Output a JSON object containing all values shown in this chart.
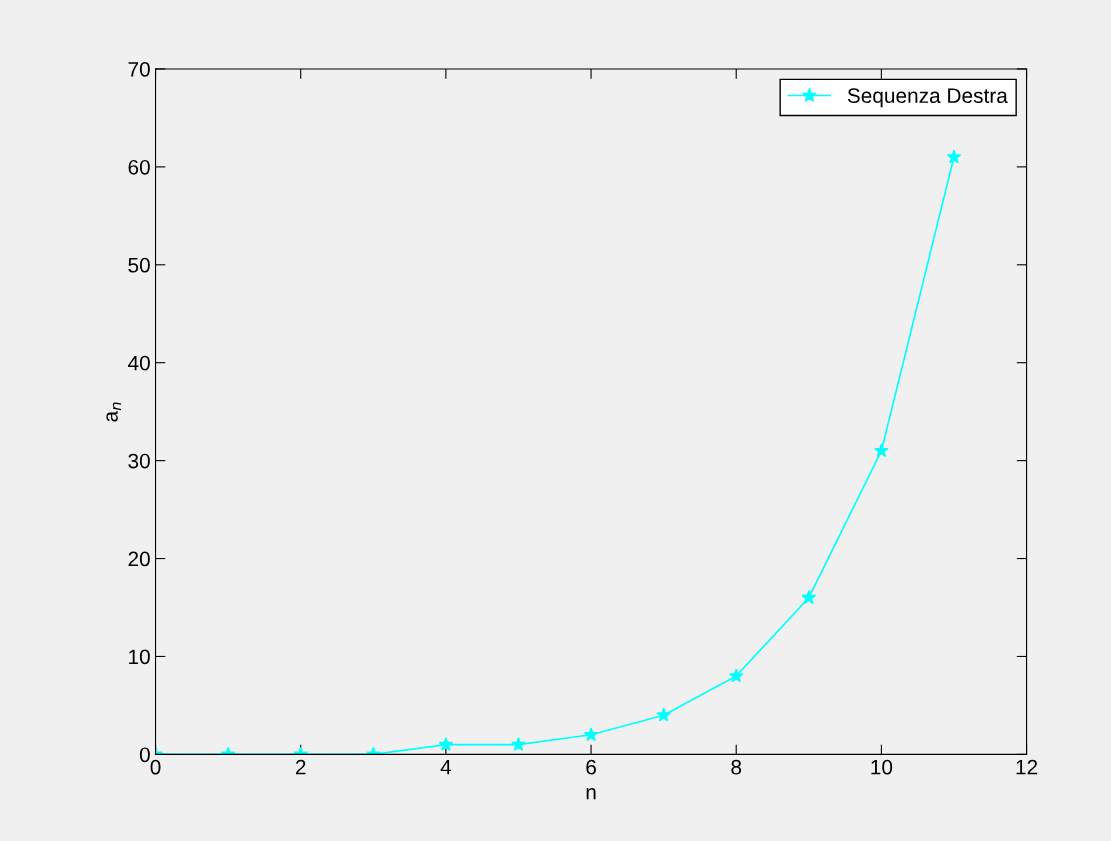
{
  "chart_data": {
    "type": "line",
    "xlabel": "n",
    "ylabel": "a$_{n}$",
    "x": [
      0,
      1,
      2,
      3,
      4,
      5,
      6,
      7,
      8,
      9,
      10,
      11
    ],
    "series": [
      {
        "name": "Sequenza Destra",
        "color": "#00ffff",
        "values": [
          0,
          0,
          0,
          0,
          1,
          1,
          2,
          4,
          8,
          16,
          31,
          61
        ]
      }
    ],
    "xlim": [
      0,
      12
    ],
    "xticks": [
      0,
      2,
      4,
      6,
      8,
      10,
      12
    ],
    "ylim": [
      0,
      70
    ],
    "yticks": [
      0,
      10,
      20,
      30,
      40,
      50,
      60,
      70
    ],
    "marker": "star",
    "line_style": "solid",
    "legend": "top right",
    "grid": false
  }
}
